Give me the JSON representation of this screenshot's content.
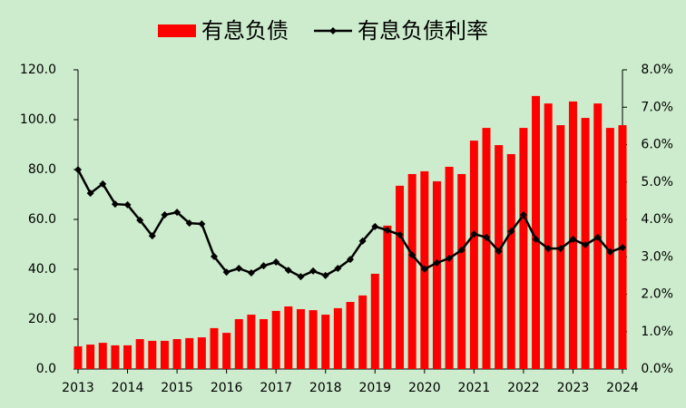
{
  "chart_data": {
    "type": "bar",
    "x": [
      2013,
      2013.25,
      2013.5,
      2013.75,
      2014,
      2014.25,
      2014.5,
      2014.75,
      2015,
      2015.25,
      2015.5,
      2015.75,
      2016,
      2016.25,
      2016.5,
      2016.75,
      2017,
      2017.25,
      2017.5,
      2017.75,
      2018,
      2018.25,
      2018.5,
      2018.75,
      2019,
      2019.25,
      2019.5,
      2019.75,
      2020,
      2020.25,
      2020.5,
      2020.75,
      2021,
      2021.25,
      2021.5,
      2021.75,
      2022,
      2022.25,
      2022.5,
      2022.75,
      2023,
      2023.25,
      2023.5,
      2023.75,
      2024
    ],
    "series": [
      {
        "name": "有息负债",
        "type": "bar",
        "color": "#ff0000",
        "axis": "y",
        "values": [
          9.1,
          9.8,
          10.5,
          9.5,
          9.5,
          12.0,
          11.3,
          11.3,
          12.0,
          12.4,
          12.7,
          16.4,
          14.5,
          20.0,
          21.8,
          20.0,
          23.3,
          25.1,
          24.0,
          23.6,
          21.8,
          24.4,
          26.9,
          29.5,
          38.2,
          57.5,
          73.5,
          78.2,
          79.3,
          75.3,
          81.1,
          78.2,
          91.6,
          96.7,
          89.8,
          86.2,
          96.7,
          109.5,
          106.5,
          97.8,
          107.3,
          100.7,
          106.5,
          96.7,
          97.8
        ]
      },
      {
        "name": "有息负债利率",
        "type": "line",
        "color": "#000000",
        "axis": "y2",
        "values": [
          5.33,
          4.7,
          4.95,
          4.41,
          4.39,
          3.98,
          3.56,
          4.12,
          4.19,
          3.9,
          3.88,
          3.01,
          2.59,
          2.69,
          2.57,
          2.76,
          2.86,
          2.64,
          2.47,
          2.62,
          2.5,
          2.69,
          2.93,
          3.42,
          3.81,
          3.71,
          3.59,
          3.05,
          2.67,
          2.84,
          2.96,
          3.18,
          3.61,
          3.52,
          3.15,
          3.68,
          4.12,
          3.47,
          3.22,
          3.22,
          3.47,
          3.32,
          3.52,
          3.13,
          3.25
        ]
      }
    ],
    "xlim": [
      2013,
      2024
    ],
    "xticks": [
      2013,
      2014,
      2015,
      2016,
      2017,
      2018,
      2019,
      2020,
      2021,
      2022,
      2023,
      2024
    ],
    "ylim": [
      0,
      120
    ],
    "yticks": [
      {
        "value": 0,
        "label": "0.0"
      },
      {
        "value": 20,
        "label": "20.0"
      },
      {
        "value": 40,
        "label": "40.0"
      },
      {
        "value": 60,
        "label": "60.0"
      },
      {
        "value": 80,
        "label": "80.0"
      },
      {
        "value": 100,
        "label": "100.0"
      },
      {
        "value": 120,
        "label": "120.0"
      }
    ],
    "y2lim": [
      0,
      8
    ],
    "y2ticks": [
      {
        "value": 0,
        "label": "0.0%"
      },
      {
        "value": 1,
        "label": "1.0%"
      },
      {
        "value": 2,
        "label": "2.0%"
      },
      {
        "value": 3,
        "label": "3.0%"
      },
      {
        "value": 4,
        "label": "4.0%"
      },
      {
        "value": 5,
        "label": "5.0%"
      },
      {
        "value": 6,
        "label": "6.0%"
      },
      {
        "value": 7,
        "label": "7.0%"
      },
      {
        "value": 8,
        "label": "8.0%"
      }
    ],
    "legend": "top",
    "grid": false
  }
}
